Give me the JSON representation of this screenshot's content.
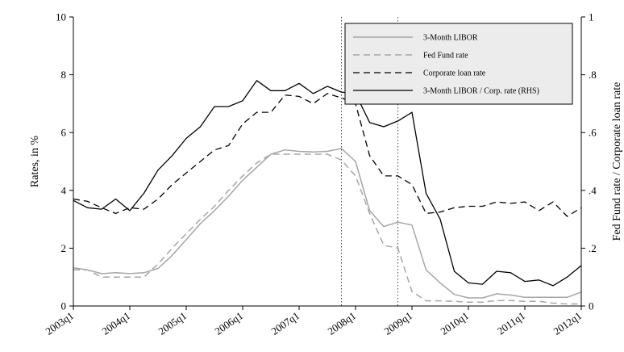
{
  "chart_data": {
    "type": "line",
    "title": "",
    "xlabel": "",
    "ylabel": "Rates, in %",
    "y2label": "Fed Fund rate / Corporate loan rate",
    "ylim": [
      0,
      10
    ],
    "y2lim": [
      0,
      1
    ],
    "yticks": [
      "0",
      "2",
      "4",
      "6",
      "8",
      "10"
    ],
    "y2ticks": [
      "0",
      ".2",
      ".4",
      ".6",
      ".8",
      "1"
    ],
    "xlim": [
      2003.0,
      2012.0
    ],
    "xticks": [
      "2003q1",
      "2004q1",
      "2005q1",
      "2006q1",
      "2007q1",
      "2008q1",
      "2009q1",
      "2010q1",
      "2011q1",
      "2012q1"
    ],
    "vlines": [
      2007.75,
      2008.75
    ],
    "legend_position": "top-right",
    "x": [
      2003.0,
      2003.25,
      2003.5,
      2003.75,
      2004.0,
      2004.25,
      2004.5,
      2004.75,
      2005.0,
      2005.25,
      2005.5,
      2005.75,
      2006.0,
      2006.25,
      2006.5,
      2006.75,
      2007.0,
      2007.25,
      2007.5,
      2007.75,
      2008.0,
      2008.25,
      2008.5,
      2008.75,
      2009.0,
      2009.25,
      2009.5,
      2009.75,
      2010.0,
      2010.25,
      2010.5,
      2010.75,
      2011.0,
      2011.25,
      2011.5,
      2011.75,
      2012.0
    ],
    "series": [
      {
        "name": "3-Month LIBOR",
        "axis": "left",
        "color": "#a6a6a6",
        "dash": "solid",
        "values": [
          1.32,
          1.25,
          1.12,
          1.15,
          1.12,
          1.15,
          1.3,
          1.75,
          2.3,
          2.85,
          3.3,
          3.8,
          4.35,
          4.8,
          5.25,
          5.4,
          5.35,
          5.33,
          5.35,
          5.45,
          5.0,
          3.3,
          2.75,
          2.9,
          2.8,
          1.25,
          0.8,
          0.4,
          0.28,
          0.28,
          0.42,
          0.38,
          0.3,
          0.3,
          0.3,
          0.3,
          0.48
        ]
      },
      {
        "name": "Fed Fund rate",
        "axis": "left",
        "color": "#a6a6a6",
        "dash": "dashed",
        "values": [
          1.25,
          1.25,
          1.0,
          1.0,
          1.0,
          1.0,
          1.45,
          2.0,
          2.5,
          3.0,
          3.45,
          4.0,
          4.5,
          4.95,
          5.25,
          5.25,
          5.25,
          5.25,
          5.25,
          5.05,
          4.5,
          3.2,
          2.1,
          2.0,
          0.5,
          0.18,
          0.18,
          0.16,
          0.13,
          0.13,
          0.19,
          0.19,
          0.16,
          0.16,
          0.1,
          0.07,
          0.07
        ]
      },
      {
        "name": "Corporate loan rate",
        "axis": "left",
        "color": "#000000",
        "dash": "dashed",
        "values": [
          3.7,
          3.62,
          3.4,
          3.2,
          3.4,
          3.35,
          3.7,
          4.2,
          4.6,
          5.0,
          5.4,
          5.55,
          6.3,
          6.7,
          6.7,
          7.3,
          7.25,
          7.0,
          7.35,
          7.2,
          7.0,
          5.2,
          4.5,
          4.5,
          4.2,
          3.2,
          3.25,
          3.4,
          3.45,
          3.45,
          3.6,
          3.55,
          3.6,
          3.3,
          3.6,
          3.1,
          3.4
        ]
      },
      {
        "name": "3-Month LIBOR / Corp. rate (RHS)",
        "axis": "right",
        "color": "#000000",
        "dash": "solid",
        "values": [
          0.365,
          0.34,
          0.335,
          0.37,
          0.33,
          0.39,
          0.47,
          0.52,
          0.58,
          0.62,
          0.69,
          0.69,
          0.71,
          0.78,
          0.745,
          0.745,
          0.77,
          0.735,
          0.76,
          0.74,
          0.735,
          0.635,
          0.62,
          0.64,
          0.67,
          0.39,
          0.3,
          0.12,
          0.08,
          0.075,
          0.12,
          0.115,
          0.085,
          0.09,
          0.07,
          0.1,
          0.14
        ]
      }
    ]
  }
}
